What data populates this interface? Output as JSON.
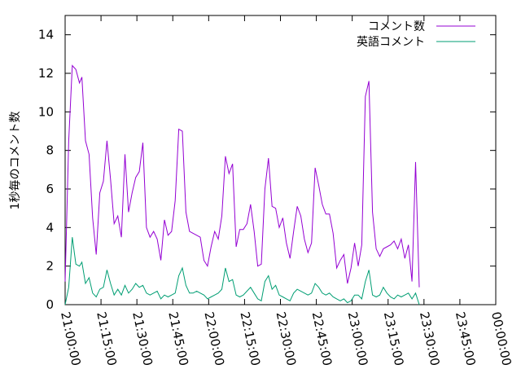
{
  "chart_data": {
    "type": "line",
    "title": "",
    "xlabel": "",
    "ylabel": "1秒毎のコメント数",
    "xlim": [
      "21:00:00",
      "00:00:00"
    ],
    "ylim": [
      0,
      15
    ],
    "x_ticks": [
      "21:00:00",
      "21:15:00",
      "21:30:00",
      "21:45:00",
      "22:00:00",
      "22:15:00",
      "22:30:00",
      "22:45:00",
      "23:00:00",
      "23:15:00",
      "23:30:00",
      "23:45:00",
      "00:00:00"
    ],
    "y_ticks": [
      0,
      2,
      4,
      6,
      8,
      10,
      12,
      14
    ],
    "grid": false,
    "legend_position": "top-right",
    "series": [
      {
        "name": "コメント数",
        "color": "#9400d3",
        "points": [
          [
            "21:00:00",
            1.2
          ],
          [
            "21:01:30",
            8.5
          ],
          [
            "21:03:00",
            12.4
          ],
          [
            "21:04:30",
            12.2
          ],
          [
            "21:06:00",
            11.5
          ],
          [
            "21:07:00",
            11.8
          ],
          [
            "21:08:30",
            8.5
          ],
          [
            "21:10:00",
            7.8
          ],
          [
            "21:11:30",
            4.5
          ],
          [
            "21:13:00",
            2.6
          ],
          [
            "21:14:30",
            5.8
          ],
          [
            "21:16:00",
            6.4
          ],
          [
            "21:17:30",
            8.5
          ],
          [
            "21:19:00",
            6.5
          ],
          [
            "21:20:30",
            4.2
          ],
          [
            "21:22:00",
            4.6
          ],
          [
            "21:23:30",
            3.5
          ],
          [
            "21:25:00",
            7.8
          ],
          [
            "21:26:30",
            4.8
          ],
          [
            "21:28:00",
            5.8
          ],
          [
            "21:29:30",
            6.6
          ],
          [
            "21:31:00",
            6.9
          ],
          [
            "21:32:30",
            8.4
          ],
          [
            "21:34:00",
            4.0
          ],
          [
            "21:35:30",
            3.5
          ],
          [
            "21:37:00",
            3.8
          ],
          [
            "21:38:30",
            3.4
          ],
          [
            "21:40:00",
            2.3
          ],
          [
            "21:41:30",
            4.4
          ],
          [
            "21:43:00",
            3.6
          ],
          [
            "21:44:30",
            3.8
          ],
          [
            "21:46:00",
            5.4
          ],
          [
            "21:47:30",
            9.1
          ],
          [
            "21:49:00",
            9.0
          ],
          [
            "21:50:30",
            4.8
          ],
          [
            "21:52:00",
            3.8
          ],
          [
            "21:53:30",
            3.7
          ],
          [
            "21:55:00",
            3.6
          ],
          [
            "21:56:30",
            3.5
          ],
          [
            "21:58:00",
            2.3
          ],
          [
            "21:59:30",
            2.0
          ],
          [
            "22:01:00",
            3.0
          ],
          [
            "22:02:30",
            3.8
          ],
          [
            "22:04:00",
            3.4
          ],
          [
            "22:05:30",
            4.6
          ],
          [
            "22:07:00",
            7.7
          ],
          [
            "22:08:30",
            6.8
          ],
          [
            "22:10:00",
            7.3
          ],
          [
            "22:11:30",
            3.0
          ],
          [
            "22:13:00",
            3.9
          ],
          [
            "22:14:30",
            3.9
          ],
          [
            "22:16:00",
            4.2
          ],
          [
            "22:17:30",
            5.2
          ],
          [
            "22:19:00",
            3.8
          ],
          [
            "22:20:30",
            2.0
          ],
          [
            "22:22:00",
            2.1
          ],
          [
            "22:23:30",
            6.0
          ],
          [
            "22:25:00",
            7.6
          ],
          [
            "22:26:30",
            5.1
          ],
          [
            "22:28:00",
            5.0
          ],
          [
            "22:29:30",
            4.0
          ],
          [
            "22:31:00",
            4.5
          ],
          [
            "22:32:30",
            3.2
          ],
          [
            "22:34:00",
            2.4
          ],
          [
            "22:35:30",
            3.8
          ],
          [
            "22:37:00",
            5.1
          ],
          [
            "22:38:30",
            4.6
          ],
          [
            "22:40:00",
            3.4
          ],
          [
            "22:41:30",
            2.7
          ],
          [
            "22:43:00",
            3.2
          ],
          [
            "22:44:30",
            7.1
          ],
          [
            "22:46:00",
            6.2
          ],
          [
            "22:47:30",
            5.2
          ],
          [
            "22:49:00",
            4.7
          ],
          [
            "22:50:30",
            4.7
          ],
          [
            "22:52:00",
            3.7
          ],
          [
            "22:53:30",
            1.9
          ],
          [
            "22:55:00",
            2.3
          ],
          [
            "22:56:30",
            2.6
          ],
          [
            "22:58:00",
            1.1
          ],
          [
            "22:59:30",
            1.9
          ],
          [
            "23:01:00",
            3.2
          ],
          [
            "23:02:30",
            2.0
          ],
          [
            "23:04:00",
            3.1
          ],
          [
            "23:05:30",
            10.8
          ],
          [
            "23:07:00",
            11.6
          ],
          [
            "23:08:30",
            4.8
          ],
          [
            "23:10:00",
            2.9
          ],
          [
            "23:11:30",
            2.5
          ],
          [
            "23:13:00",
            2.9
          ],
          [
            "23:14:30",
            3.0
          ],
          [
            "23:16:00",
            3.1
          ],
          [
            "23:17:30",
            3.3
          ],
          [
            "23:19:00",
            2.9
          ],
          [
            "23:20:30",
            3.4
          ],
          [
            "23:22:00",
            2.4
          ],
          [
            "23:23:30",
            3.1
          ],
          [
            "23:25:00",
            1.2
          ],
          [
            "23:26:30",
            7.4
          ],
          [
            "23:28:00",
            0.9
          ]
        ]
      },
      {
        "name": "英語コメント",
        "color": "#009e73",
        "points": [
          [
            "21:00:00",
            0.0
          ],
          [
            "21:01:30",
            0.9
          ],
          [
            "21:03:00",
            3.5
          ],
          [
            "21:04:30",
            2.1
          ],
          [
            "21:06:00",
            2.0
          ],
          [
            "21:07:00",
            2.2
          ],
          [
            "21:08:30",
            1.1
          ],
          [
            "21:10:00",
            1.4
          ],
          [
            "21:11:30",
            0.6
          ],
          [
            "21:13:00",
            0.4
          ],
          [
            "21:14:30",
            0.8
          ],
          [
            "21:16:00",
            0.9
          ],
          [
            "21:17:30",
            1.8
          ],
          [
            "21:19:00",
            1.1
          ],
          [
            "21:20:30",
            0.5
          ],
          [
            "21:22:00",
            0.8
          ],
          [
            "21:23:30",
            0.5
          ],
          [
            "21:25:00",
            1.0
          ],
          [
            "21:26:30",
            0.6
          ],
          [
            "21:28:00",
            0.8
          ],
          [
            "21:29:30",
            1.1
          ],
          [
            "21:31:00",
            0.9
          ],
          [
            "21:32:30",
            1.0
          ],
          [
            "21:34:00",
            0.6
          ],
          [
            "21:35:30",
            0.5
          ],
          [
            "21:37:00",
            0.6
          ],
          [
            "21:38:30",
            0.7
          ],
          [
            "21:40:00",
            0.3
          ],
          [
            "21:41:30",
            0.5
          ],
          [
            "21:43:00",
            0.4
          ],
          [
            "21:44:30",
            0.5
          ],
          [
            "21:46:00",
            0.6
          ],
          [
            "21:47:30",
            1.5
          ],
          [
            "21:49:00",
            1.9
          ],
          [
            "21:50:30",
            1.0
          ],
          [
            "21:52:00",
            0.6
          ],
          [
            "21:53:30",
            0.6
          ],
          [
            "21:55:00",
            0.7
          ],
          [
            "21:56:30",
            0.6
          ],
          [
            "21:58:00",
            0.5
          ],
          [
            "21:59:30",
            0.3
          ],
          [
            "22:01:00",
            0.4
          ],
          [
            "22:02:30",
            0.5
          ],
          [
            "22:04:00",
            0.6
          ],
          [
            "22:05:30",
            0.8
          ],
          [
            "22:07:00",
            1.9
          ],
          [
            "22:08:30",
            1.2
          ],
          [
            "22:10:00",
            1.3
          ],
          [
            "22:11:30",
            0.5
          ],
          [
            "22:13:00",
            0.4
          ],
          [
            "22:14:30",
            0.5
          ],
          [
            "22:16:00",
            0.7
          ],
          [
            "22:17:30",
            0.9
          ],
          [
            "22:19:00",
            0.6
          ],
          [
            "22:20:30",
            0.3
          ],
          [
            "22:22:00",
            0.2
          ],
          [
            "22:23:30",
            1.2
          ],
          [
            "22:25:00",
            1.5
          ],
          [
            "22:26:30",
            0.8
          ],
          [
            "22:28:00",
            1.0
          ],
          [
            "22:29:30",
            0.5
          ],
          [
            "22:31:00",
            0.4
          ],
          [
            "22:32:30",
            0.3
          ],
          [
            "22:34:00",
            0.2
          ],
          [
            "22:35:30",
            0.6
          ],
          [
            "22:37:00",
            0.8
          ],
          [
            "22:38:30",
            0.7
          ],
          [
            "22:40:00",
            0.6
          ],
          [
            "22:41:30",
            0.5
          ],
          [
            "22:43:00",
            0.6
          ],
          [
            "22:44:30",
            1.1
          ],
          [
            "22:46:00",
            0.9
          ],
          [
            "22:47:30",
            0.6
          ],
          [
            "22:49:00",
            0.5
          ],
          [
            "22:50:30",
            0.6
          ],
          [
            "22:52:00",
            0.4
          ],
          [
            "22:53:30",
            0.3
          ],
          [
            "22:55:00",
            0.2
          ],
          [
            "22:56:30",
            0.3
          ],
          [
            "22:58:00",
            0.1
          ],
          [
            "22:59:30",
            0.2
          ],
          [
            "23:01:00",
            0.5
          ],
          [
            "23:02:30",
            0.5
          ],
          [
            "23:04:00",
            0.3
          ],
          [
            "23:05:30",
            1.2
          ],
          [
            "23:07:00",
            1.8
          ],
          [
            "23:08:30",
            0.5
          ],
          [
            "23:10:00",
            0.4
          ],
          [
            "23:11:30",
            0.5
          ],
          [
            "23:13:00",
            0.9
          ],
          [
            "23:14:30",
            0.6
          ],
          [
            "23:16:00",
            0.4
          ],
          [
            "23:17:30",
            0.3
          ],
          [
            "23:19:00",
            0.5
          ],
          [
            "23:20:30",
            0.4
          ],
          [
            "23:22:00",
            0.5
          ],
          [
            "23:23:30",
            0.6
          ],
          [
            "23:25:00",
            0.3
          ],
          [
            "23:26:30",
            0.6
          ],
          [
            "23:28:00",
            0.0
          ]
        ]
      }
    ]
  }
}
